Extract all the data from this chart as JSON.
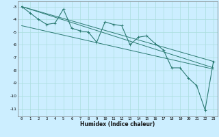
{
  "xlabel": "Humidex (Indice chaleur)",
  "bg_color": "#cceeff",
  "line_color": "#2a7a72",
  "grid_color": "#aadddd",
  "xlim": [
    -0.5,
    23.5
  ],
  "ylim": [
    -11.6,
    -2.6
  ],
  "yticks": [
    -3,
    -4,
    -5,
    -6,
    -7,
    -8,
    -9,
    -10,
    -11
  ],
  "xticks": [
    0,
    1,
    2,
    3,
    4,
    5,
    6,
    7,
    8,
    9,
    10,
    11,
    12,
    13,
    14,
    15,
    16,
    17,
    18,
    19,
    20,
    21,
    22,
    23
  ],
  "series1_x": [
    0,
    1,
    2,
    3,
    4,
    5,
    6,
    7,
    8,
    9,
    10,
    11,
    12,
    13,
    14,
    15,
    16,
    17,
    18,
    19,
    20,
    21,
    22,
    23
  ],
  "series1_y": [
    -3.0,
    -3.5,
    -4.0,
    -4.4,
    -4.3,
    -3.2,
    -4.7,
    -4.9,
    -5.0,
    -5.8,
    -4.2,
    -4.4,
    -4.5,
    -6.0,
    -5.4,
    -5.3,
    -5.9,
    -6.4,
    -7.8,
    -7.8,
    -8.6,
    -9.2,
    -11.1,
    -7.3
  ],
  "trend1_x": [
    0,
    23
  ],
  "trend1_y": [
    -3.0,
    -7.8
  ],
  "trend2_x": [
    0,
    23
  ],
  "trend2_y": [
    -3.0,
    -7.3
  ],
  "trend3_x": [
    0,
    23
  ],
  "trend3_y": [
    -4.5,
    -7.9
  ]
}
